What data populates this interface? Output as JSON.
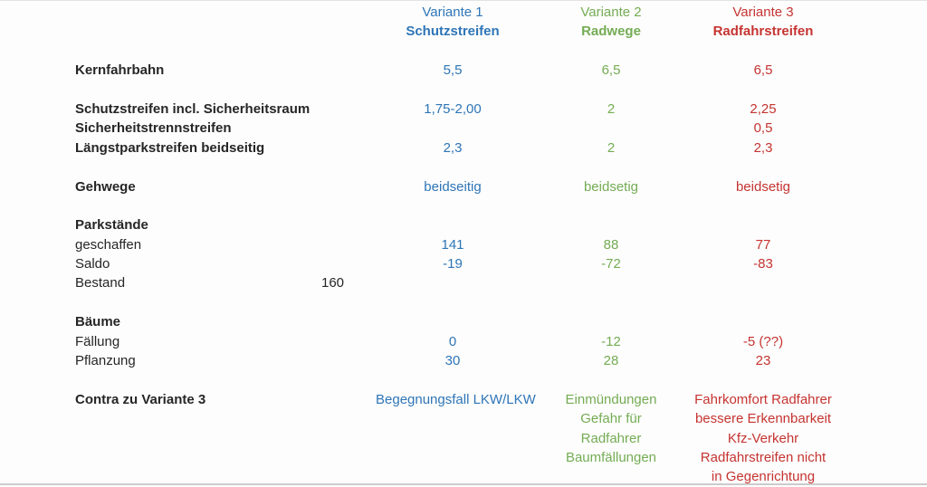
{
  "colors": {
    "variante1_blue": "#2e75b6",
    "variante2_green": "#74ac54",
    "variante3_red": "#c53431",
    "text_black": "#262626"
  },
  "table": {
    "header": {
      "v1_line1": "Variante 1",
      "v1_line2": "Schutzstreifen",
      "v2_line1": "Variante 2",
      "v2_line2": "Radwege",
      "v3_line1": "Variante 3",
      "v3_line2": "Radfahrstreifen"
    },
    "rows": {
      "kernfahrbahn": {
        "label": "Kernfahrbahn",
        "v1": "5,5",
        "v2": "6,5",
        "v3": "6,5"
      },
      "schutzstreifen": {
        "label": "Schutzstreifen incl. Sicherheitsraum",
        "v1": "1,75-2,00",
        "v2": "2",
        "v3": "2,25"
      },
      "sicherheitstrennstreifen": {
        "label": "Sicherheitstrennstreifen",
        "v3": "0,5"
      },
      "laengstparkstreifen": {
        "label": "Längstparkstreifen beidseitig",
        "v1": "2,3",
        "v2": "2",
        "v3": "2,3"
      },
      "gehwege": {
        "label": "Gehwege",
        "v1": "beidseitig",
        "v2": "beidsetig",
        "v3": "beidsetig"
      },
      "parkstaende": {
        "label": "Parkstände"
      },
      "geschaffen": {
        "label": "geschaffen",
        "v1": "141",
        "v2": "88",
        "v3": "77"
      },
      "saldo": {
        "label": "Saldo",
        "v1": "-19",
        "v2": "-72",
        "v3": "-83"
      },
      "bestand": {
        "label": "Bestand",
        "mid": "160"
      },
      "baeume": {
        "label": "Bäume"
      },
      "faellung": {
        "label": "Fällung",
        "v1": "0",
        "v2": "-12",
        "v3": "-5 (??)"
      },
      "pflanzung": {
        "label": "Pflanzung",
        "v1": "30",
        "v2": "28",
        "v3": "23"
      },
      "contra": {
        "label": "Contra zu Variante 3",
        "v1": "Begegnungsfall LKW/LKW",
        "v2_lines": {
          "0": "Einmündungen",
          "1": "Gefahr für",
          "2": "Radfahrer",
          "3": "Baumfällungen"
        },
        "v3_lines": {
          "0": "Fahrkomfort Radfahrer",
          "1": "bessere Erkennbarkeit",
          "2": "Kfz-Verkehr",
          "3": "Radfahrstreifen nicht",
          "4": "in Gegenrichtung"
        }
      }
    }
  }
}
